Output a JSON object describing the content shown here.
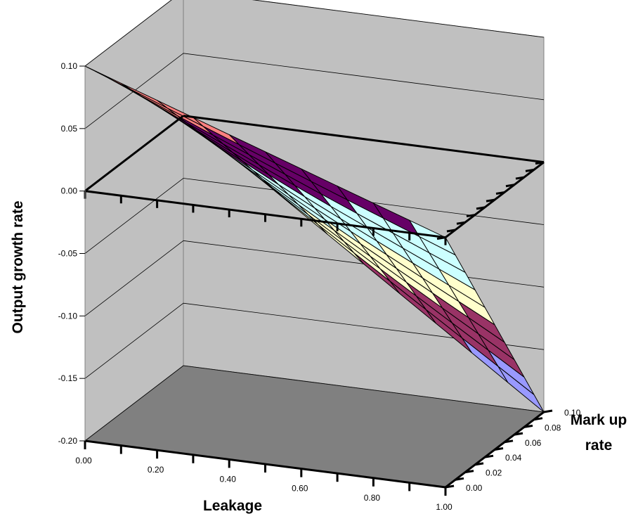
{
  "chart_data": {
    "type": "surface3d",
    "title": "",
    "zlabel": "Output growth rate",
    "xlabel": "Leakage",
    "ylabel_line1": "Mark up",
    "ylabel_line2": "rate",
    "z_ticks": [
      "0.10",
      "0.05",
      "0.00",
      "-0.05",
      "-0.10",
      "-0.15",
      "-0.20"
    ],
    "x_ticks": [
      "0.00",
      "0.20",
      "0.40",
      "0.60",
      "0.80",
      "1.00"
    ],
    "y_ticks": [
      "0.00",
      "0.02",
      "0.04",
      "0.06",
      "0.08",
      "0.10"
    ],
    "zlim": [
      -0.2,
      0.1
    ],
    "xlim": [
      0,
      1
    ],
    "ylim": [
      0,
      0.1
    ],
    "grid": true,
    "surface_corners": [
      {
        "leakage": 0.0,
        "markup": 0.0,
        "growth": 0.1
      },
      {
        "leakage": 0.0,
        "markup": 0.1,
        "growth": 0.0
      },
      {
        "leakage": 1.0,
        "markup": 0.0,
        "growth": 0.0
      },
      {
        "leakage": 1.0,
        "markup": 0.1,
        "growth": -0.2
      }
    ],
    "color_bands": [
      {
        "range": [
          -0.2,
          -0.15
        ],
        "color": "#9999FF"
      },
      {
        "range": [
          -0.15,
          -0.1
        ],
        "color": "#993366"
      },
      {
        "range": [
          -0.1,
          -0.05
        ],
        "color": "#FFFFCC"
      },
      {
        "range": [
          -0.05,
          0.0
        ],
        "color": "#CCFFFF"
      },
      {
        "range": [
          0.0,
          0.05
        ],
        "color": "#660066"
      },
      {
        "range": [
          0.05,
          0.1
        ],
        "color": "#FF8080"
      }
    ],
    "colors": {
      "wall": "#C0C0C0",
      "floor": "#808080",
      "gridline": "#000000"
    }
  }
}
